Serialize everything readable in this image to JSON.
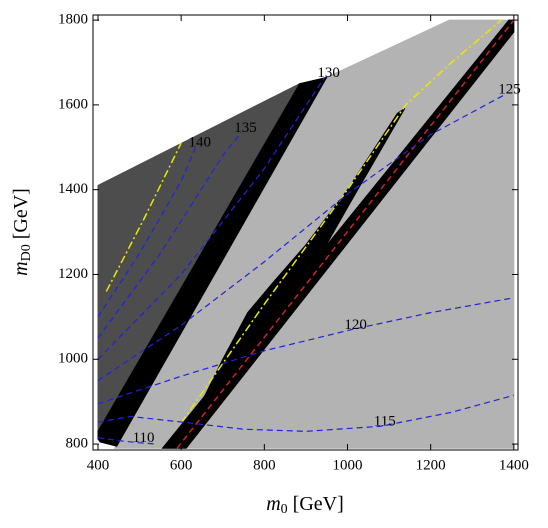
{
  "chart_data": {
    "type": "contour",
    "xlabel": {
      "symbol": "m",
      "sub": "0",
      "unit": "[GeV]"
    },
    "ylabel": {
      "symbol": "m",
      "sub": "D0",
      "unit": "[GeV]"
    },
    "xlim": [
      388,
      1410
    ],
    "ylim": [
      786,
      1812
    ],
    "xticks": [
      400,
      600,
      800,
      1000,
      1200,
      1400
    ],
    "yticks": [
      800,
      1000,
      1200,
      1400,
      1600,
      1800
    ],
    "regions": [
      {
        "color": "#b3b3b3",
        "x": [
          440,
          950,
          1245,
          1400,
          1400
        ],
        "y": [
          790,
          1665,
          1800,
          1800,
          790
        ]
      },
      {
        "color": "#4d4d4d",
        "x": [
          400,
          885,
          400
        ],
        "y": [
          1410,
          1650,
          830
        ]
      },
      {
        "color": "#000000",
        "x": [
          400,
          885,
          950,
          445,
          405,
          400
        ],
        "y": [
          830,
          1650,
          1665,
          795,
          805,
          812
        ]
      },
      {
        "color": "#000000",
        "x": [
          555,
          612,
          1400,
          1400,
          1388
        ],
        "y": [
          790,
          790,
          1772,
          1800,
          1800
        ]
      },
      {
        "color": "#000000",
        "x": [
          640,
          700,
          760,
          820,
          900,
          1000,
          1120,
          1138,
          1010,
          920,
          850,
          780,
          700,
          660
        ],
        "y": [
          880,
          1000,
          1110,
          1180,
          1270,
          1400,
          1580,
          1592,
          1375,
          1220,
          1110,
          1030,
          925,
          872
        ]
      }
    ],
    "lines": [
      {
        "color": "#cc2222",
        "style": "dash",
        "x": [
          590,
          1400
        ],
        "y": [
          790,
          1800
        ]
      },
      {
        "color": "#e8e800",
        "style": "dashdot",
        "x": [
          420,
          510,
          600
        ],
        "y": [
          1160,
          1330,
          1510
        ]
      },
      {
        "color": "#e8e800",
        "style": "dashdot",
        "x": [
          600,
          800,
          1000,
          1140,
          1250,
          1370
        ],
        "y": [
          850,
          1130,
          1400,
          1600,
          1700,
          1800
        ]
      }
    ],
    "contours": [
      {
        "level": 110,
        "color": "#2222dd",
        "x": [
          400,
          450,
          500,
          540
        ],
        "y": [
          815,
          808,
          803,
          800
        ]
      },
      {
        "level": 115,
        "color": "#2222dd",
        "x": [
          400,
          480,
          600,
          750,
          900,
          1080,
          1250,
          1400
        ],
        "y": [
          852,
          865,
          852,
          835,
          830,
          842,
          875,
          915
        ]
      },
      {
        "level": 120,
        "color": "#2222dd",
        "x": [
          400,
          600,
          800,
          1010,
          1200,
          1400
        ],
        "y": [
          895,
          960,
          1020,
          1070,
          1110,
          1145
        ]
      },
      {
        "level": 125,
        "color": "#2222dd",
        "x": [
          400,
          600,
          800,
          1000,
          1200,
          1380
        ],
        "y": [
          950,
          1080,
          1230,
          1390,
          1530,
          1625
        ]
      },
      {
        "level": 130,
        "color": "#2222dd",
        "x": [
          400,
          600,
          800,
          945
        ],
        "y": [
          1000,
          1200,
          1450,
          1665
        ]
      },
      {
        "level": 135,
        "color": "#2222dd",
        "x": [
          400,
          550,
          700,
          745
        ],
        "y": [
          1050,
          1250,
          1480,
          1535
        ]
      },
      {
        "level": 140,
        "color": "#2222dd",
        "x": [
          400,
          500,
          600,
          635
        ],
        "y": [
          1100,
          1250,
          1420,
          1500
        ]
      }
    ]
  }
}
